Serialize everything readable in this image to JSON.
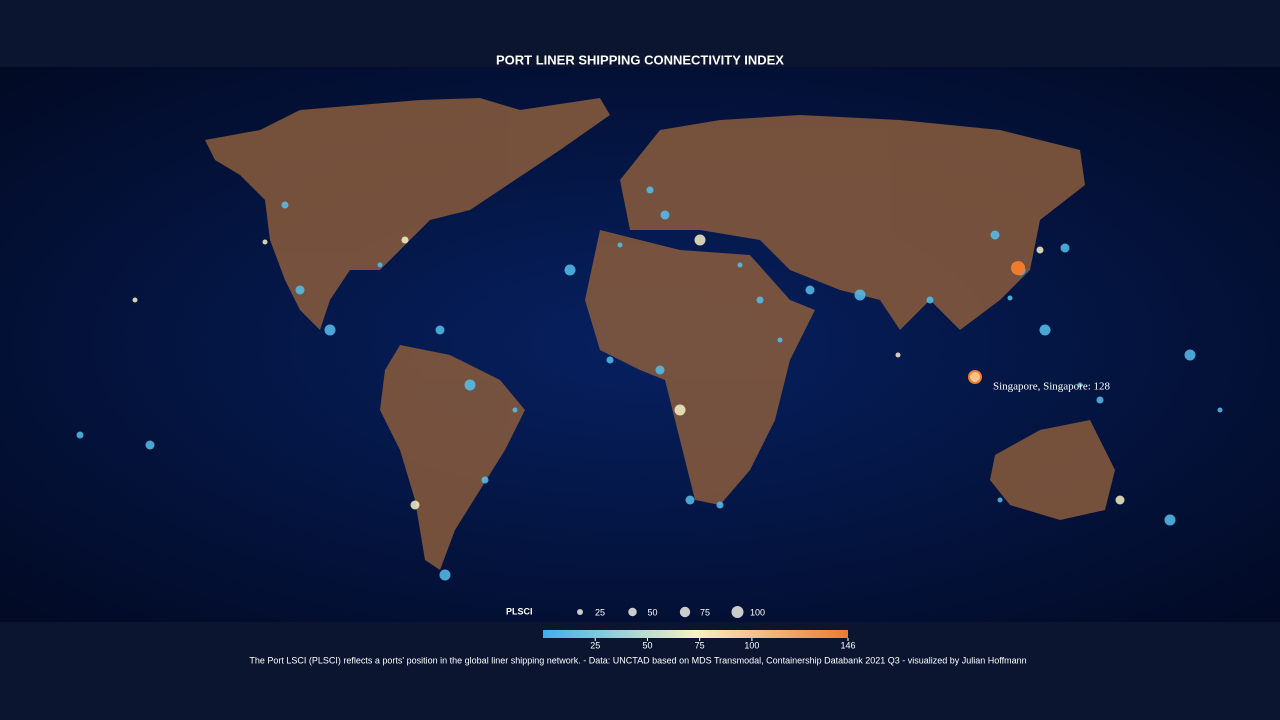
{
  "title": "PORT LINER SHIPPING CONNECTIVITY INDEX",
  "tooltip": "Singapore, Singapore: 128",
  "legend": {
    "label": "PLSCI",
    "size_ticks": [
      25,
      50,
      75,
      100
    ],
    "color_lim": [
      0,
      146
    ],
    "color_ticks": [
      25,
      50,
      75,
      100,
      146
    ],
    "colors": [
      "#3fb0ea",
      "#f6f1c4",
      "#f07a2e"
    ]
  },
  "footer": "The Port LSCI (PLSCI) reflects a ports' position in the global liner shipping network. - Data: UNCTAD based on MDS Transmodal, Containership Databank 2021 Q3 - visualized by Julian Hoffmann"
}
